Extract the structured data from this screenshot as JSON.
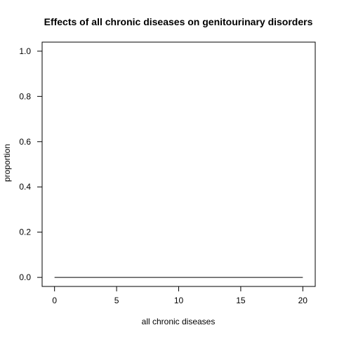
{
  "chart_data": {
    "type": "line",
    "title": "Effects of all chronic diseases on genitourinary disorders",
    "xlabel": "all chronic diseases",
    "ylabel": "proportion",
    "xlim": [
      -1,
      21
    ],
    "ylim": [
      -0.04,
      1.04
    ],
    "x_ticks": [
      0,
      5,
      10,
      15,
      20
    ],
    "y_ticks": [
      0.0,
      0.2,
      0.4,
      0.6,
      0.8,
      1.0
    ],
    "x_tick_labels": [
      "0",
      "5",
      "10",
      "15",
      "20"
    ],
    "y_tick_labels": [
      "0.0",
      "0.2",
      "0.4",
      "0.6",
      "0.8",
      "1.0"
    ],
    "grid": false,
    "series": [
      {
        "x": [
          0,
          1,
          2,
          3,
          4,
          5,
          6,
          7,
          8,
          9,
          10,
          11,
          12,
          13,
          14,
          15,
          16,
          17,
          18,
          19,
          20
        ],
        "y": [
          0,
          0,
          0,
          0,
          0,
          0,
          0,
          0,
          0,
          0,
          0,
          0,
          0,
          0,
          0,
          0,
          0,
          0,
          0,
          0,
          0
        ],
        "color": "#000000"
      }
    ]
  }
}
